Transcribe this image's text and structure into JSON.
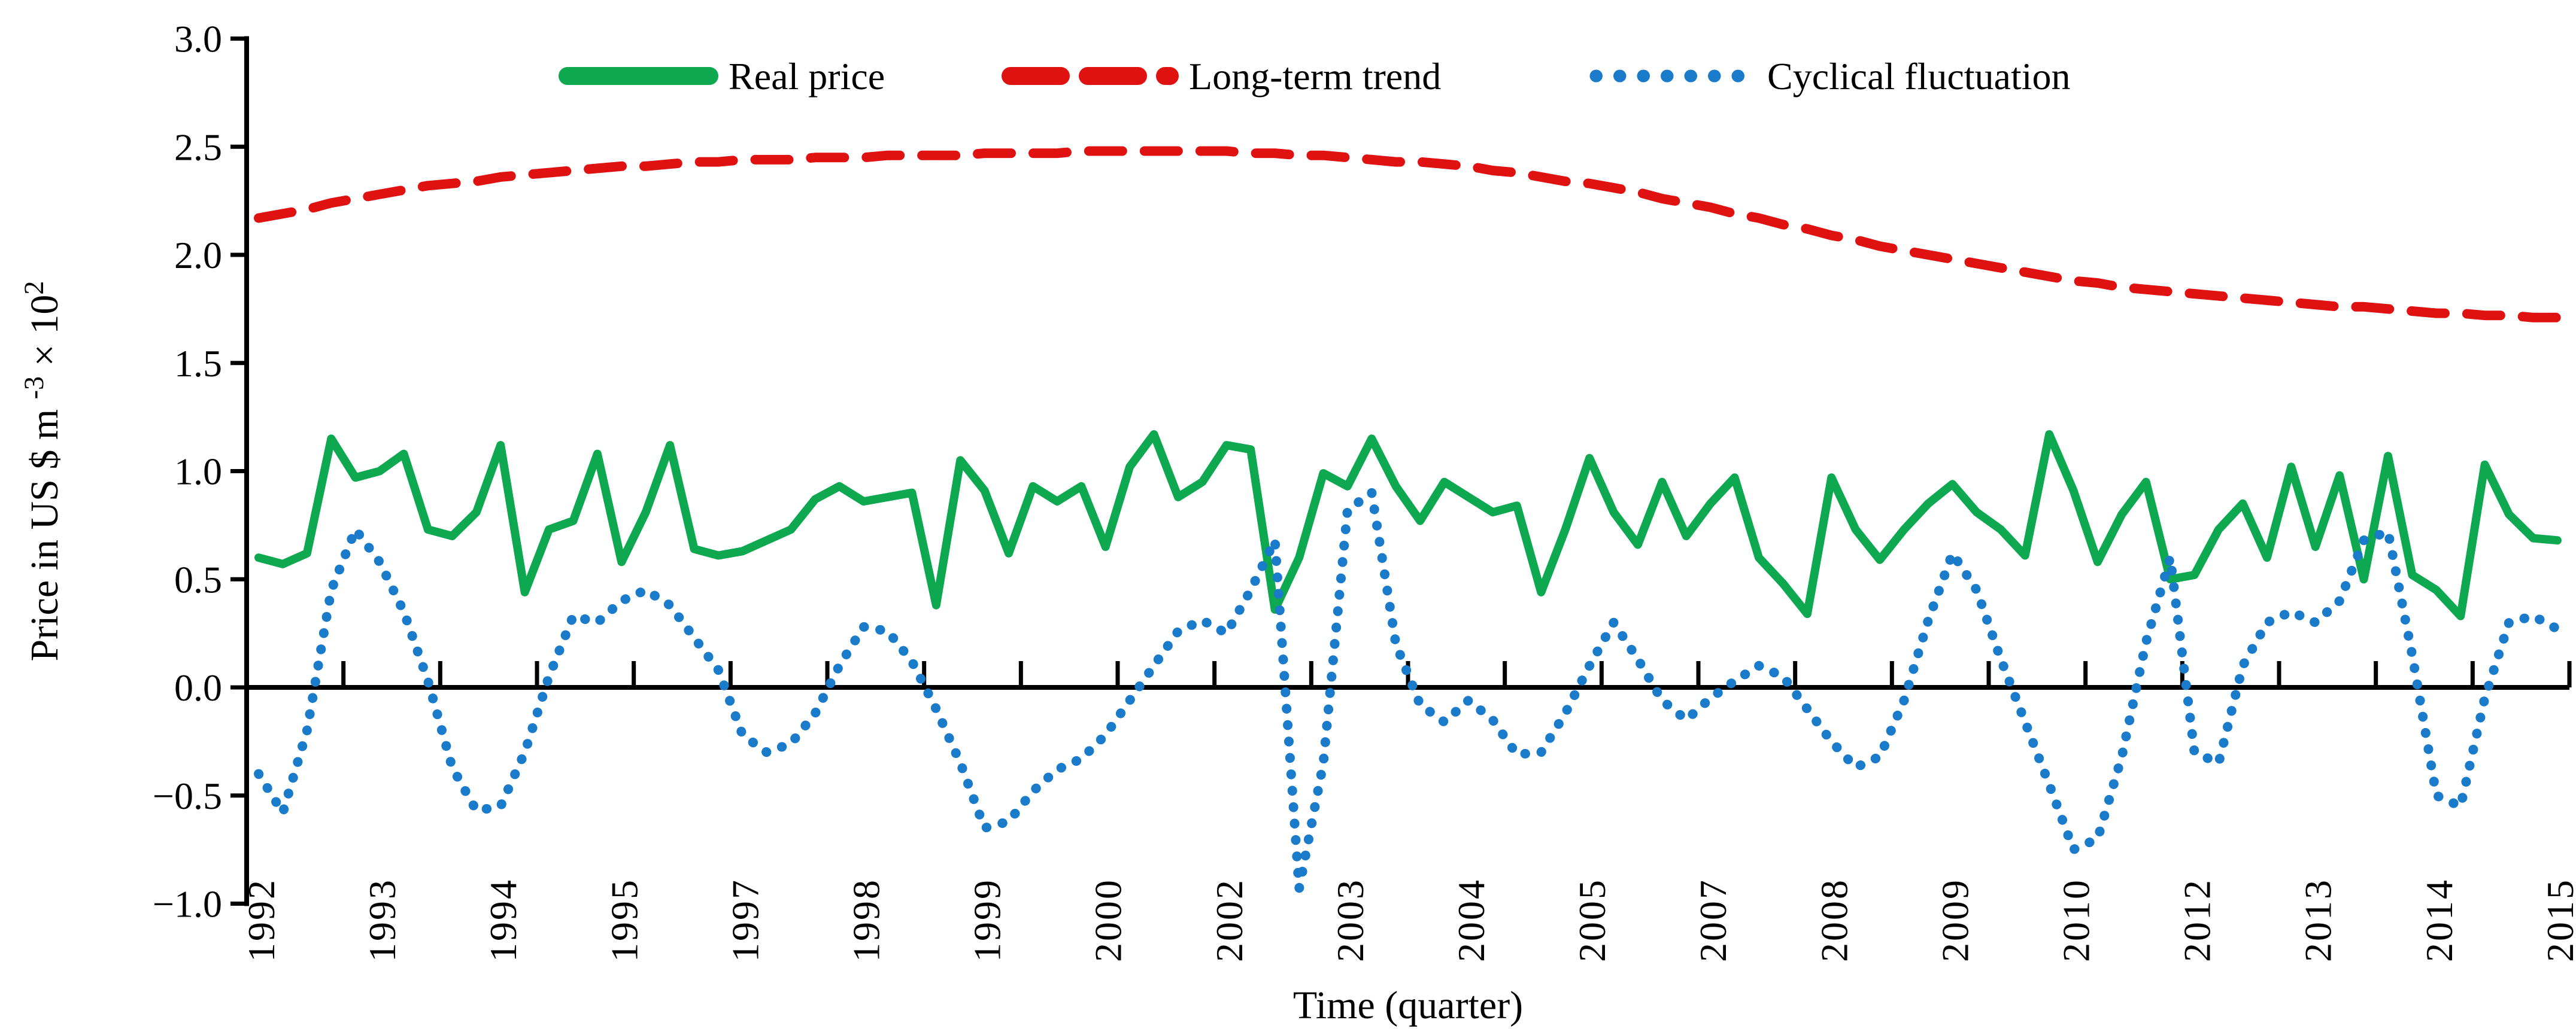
{
  "figure": {
    "type": "line-chart",
    "background": "#ffffff"
  },
  "legend": [
    {
      "label": "Real price",
      "series": "real_price",
      "color": "#0DA84F",
      "style": "solid"
    },
    {
      "label": "Long-term trend",
      "series": "trend",
      "color": "#E01111",
      "style": "dashed"
    },
    {
      "label": "Cyclical fluctuation",
      "series": "cycle",
      "color": "#1B7BCB",
      "style": "dotted"
    }
  ],
  "axes": {
    "x": {
      "title": "Time (quarter)",
      "tick_labels": [
        {
          "index": 0,
          "label": "1992"
        },
        {
          "index": 5,
          "label": "1993"
        },
        {
          "index": 10,
          "label": "1994"
        },
        {
          "index": 15,
          "label": "1995"
        },
        {
          "index": 20,
          "label": "1997"
        },
        {
          "index": 25,
          "label": "1998"
        },
        {
          "index": 30,
          "label": "1999"
        },
        {
          "index": 35,
          "label": "2000"
        },
        {
          "index": 40,
          "label": "2002"
        },
        {
          "index": 45,
          "label": "2003"
        },
        {
          "index": 50,
          "label": "2004"
        },
        {
          "index": 55,
          "label": "2005"
        },
        {
          "index": 60,
          "label": "2007"
        },
        {
          "index": 65,
          "label": "2008"
        },
        {
          "index": 70,
          "label": "2009"
        },
        {
          "index": 75,
          "label": "2010"
        },
        {
          "index": 80,
          "label": "2012"
        },
        {
          "index": 85,
          "label": "2013"
        },
        {
          "index": 90,
          "label": "2014"
        },
        {
          "index": 95,
          "label": "2015"
        }
      ]
    },
    "y": {
      "title_plain": "Price in US $ m-3 × 102",
      "title_parts": [
        {
          "t": "Price in US $ m ",
          "sup": false
        },
        {
          "t": "-3",
          "sup": true
        },
        {
          "t": " × 10",
          "sup": false
        },
        {
          "t": "2",
          "sup": true
        }
      ],
      "tick_labels": [
        "3.0",
        "2.5",
        "2.0",
        "1.5",
        "1.0",
        "0.5",
        "0.0",
        "−0.5",
        "−1.0"
      ],
      "tick_values": [
        3.0,
        2.5,
        2.0,
        1.5,
        1.0,
        0.5,
        0.0,
        -0.5,
        -1.0
      ]
    }
  },
  "chart_data": {
    "type": "line",
    "title": "",
    "xlabel": "Time (quarter)",
    "ylabel": "Price in US $ m-3 × 102",
    "ylim": [
      -1.0,
      3.0
    ],
    "y_tick_step": 0.5,
    "x_start": "1992Q1",
    "x_end": "2015Q4",
    "n_points": 96,
    "categories": [
      "1992Q1",
      "1992Q2",
      "1992Q3",
      "1992Q4",
      "1993Q1",
      "1993Q2",
      "1993Q3",
      "1993Q4",
      "1994Q1",
      "1994Q2",
      "1994Q3",
      "1994Q4",
      "1995Q1",
      "1995Q2",
      "1995Q3",
      "1995Q4",
      "1996Q1",
      "1996Q2",
      "1996Q3",
      "1996Q4",
      "1997Q1",
      "1997Q2",
      "1997Q3",
      "1997Q4",
      "1998Q1",
      "1998Q2",
      "1998Q3",
      "1998Q4",
      "1999Q1",
      "1999Q2",
      "1999Q3",
      "1999Q4",
      "2000Q1",
      "2000Q2",
      "2000Q3",
      "2000Q4",
      "2001Q1",
      "2001Q2",
      "2001Q3",
      "2001Q4",
      "2002Q1",
      "2002Q2",
      "2002Q3",
      "2002Q4",
      "2003Q1",
      "2003Q2",
      "2003Q3",
      "2003Q4",
      "2004Q1",
      "2004Q2",
      "2004Q3",
      "2004Q4",
      "2005Q1",
      "2005Q2",
      "2005Q3",
      "2005Q4",
      "2006Q1",
      "2006Q2",
      "2006Q3",
      "2006Q4",
      "2007Q1",
      "2007Q2",
      "2007Q3",
      "2007Q4",
      "2008Q1",
      "2008Q2",
      "2008Q3",
      "2008Q4",
      "2009Q1",
      "2009Q2",
      "2009Q3",
      "2009Q4",
      "2010Q1",
      "2010Q2",
      "2010Q3",
      "2010Q4",
      "2011Q1",
      "2011Q2",
      "2011Q3",
      "2011Q4",
      "2012Q1",
      "2012Q2",
      "2012Q3",
      "2012Q4",
      "2013Q1",
      "2013Q2",
      "2013Q3",
      "2013Q4",
      "2014Q1",
      "2014Q2",
      "2014Q3",
      "2014Q4",
      "2015Q1",
      "2015Q2",
      "2015Q3",
      "2015Q4"
    ],
    "series": [
      {
        "name": "Real price",
        "key": "real_price",
        "color": "#0DA84F",
        "style": "solid",
        "values": [
          0.6,
          0.57,
          0.62,
          1.15,
          0.97,
          1.0,
          1.08,
          0.73,
          0.7,
          0.81,
          1.12,
          0.44,
          0.73,
          0.77,
          1.08,
          0.58,
          0.81,
          1.12,
          0.64,
          0.61,
          0.63,
          0.68,
          0.73,
          0.87,
          0.93,
          0.86,
          0.88,
          0.9,
          0.38,
          1.05,
          0.91,
          0.62,
          0.93,
          0.86,
          0.93,
          0.65,
          1.02,
          1.17,
          0.88,
          0.95,
          1.12,
          1.1,
          0.36,
          0.6,
          0.99,
          0.93,
          1.15,
          0.93,
          0.77,
          0.95,
          0.88,
          0.81,
          0.84,
          0.44,
          0.73,
          1.06,
          0.81,
          0.66,
          0.95,
          0.7,
          0.85,
          0.97,
          0.6,
          0.48,
          0.34,
          0.97,
          0.73,
          0.59,
          0.73,
          0.85,
          0.94,
          0.81,
          0.73,
          0.61,
          1.17,
          0.91,
          0.58,
          0.8,
          0.95,
          0.5,
          0.52,
          0.73,
          0.85,
          0.6,
          1.02,
          0.65,
          0.98,
          0.5,
          1.07,
          0.52,
          0.45,
          0.33,
          1.03,
          0.8,
          0.69,
          0.68
        ]
      },
      {
        "name": "Long-term trend",
        "key": "trend",
        "color": "#E01111",
        "style": "dashed",
        "values": [
          2.17,
          2.19,
          2.21,
          2.24,
          2.26,
          2.28,
          2.3,
          2.32,
          2.33,
          2.34,
          2.36,
          2.37,
          2.38,
          2.39,
          2.4,
          2.41,
          2.41,
          2.42,
          2.43,
          2.43,
          2.44,
          2.44,
          2.44,
          2.45,
          2.45,
          2.45,
          2.46,
          2.46,
          2.46,
          2.46,
          2.47,
          2.47,
          2.47,
          2.47,
          2.48,
          2.48,
          2.48,
          2.48,
          2.48,
          2.48,
          2.48,
          2.47,
          2.47,
          2.46,
          2.46,
          2.45,
          2.44,
          2.43,
          2.43,
          2.42,
          2.41,
          2.39,
          2.38,
          2.36,
          2.34,
          2.33,
          2.31,
          2.29,
          2.26,
          2.24,
          2.22,
          2.19,
          2.17,
          2.14,
          2.12,
          2.09,
          2.07,
          2.04,
          2.02,
          2.0,
          1.98,
          1.96,
          1.94,
          1.92,
          1.9,
          1.88,
          1.87,
          1.85,
          1.84,
          1.83,
          1.82,
          1.81,
          1.8,
          1.79,
          1.78,
          1.77,
          1.76,
          1.76,
          1.75,
          1.74,
          1.73,
          1.73,
          1.72,
          1.72,
          1.71,
          1.71
        ]
      },
      {
        "name": "Cyclical fluctuation",
        "key": "cycle",
        "color": "#1B7BCB",
        "style": "dotted",
        "values": [
          -0.4,
          -0.58,
          -0.2,
          0.45,
          0.73,
          0.58,
          0.35,
          0.03,
          -0.37,
          -0.57,
          -0.55,
          -0.3,
          0.05,
          0.33,
          0.3,
          0.4,
          0.45,
          0.38,
          0.23,
          0.08,
          -0.22,
          -0.3,
          -0.26,
          -0.12,
          0.1,
          0.28,
          0.26,
          0.12,
          -0.1,
          -0.35,
          -0.65,
          -0.62,
          -0.48,
          -0.38,
          -0.33,
          -0.22,
          -0.06,
          0.1,
          0.26,
          0.31,
          0.25,
          0.45,
          0.68,
          -0.93,
          -0.35,
          0.82,
          0.9,
          0.2,
          -0.08,
          -0.16,
          -0.06,
          -0.15,
          -0.31,
          -0.3,
          -0.12,
          0.1,
          0.3,
          0.13,
          -0.06,
          -0.15,
          -0.05,
          0.03,
          0.1,
          0.05,
          -0.1,
          -0.25,
          -0.37,
          -0.32,
          -0.06,
          0.31,
          0.62,
          0.45,
          0.13,
          -0.16,
          -0.45,
          -0.75,
          -0.7,
          -0.32,
          0.21,
          0.6,
          -0.3,
          -0.35,
          0.1,
          0.3,
          0.35,
          0.3,
          0.4,
          0.68,
          0.72,
          0.15,
          -0.5,
          -0.55,
          -0.05,
          0.3,
          0.33,
          0.27
        ]
      }
    ],
    "legend_position": "top",
    "grid": false
  }
}
